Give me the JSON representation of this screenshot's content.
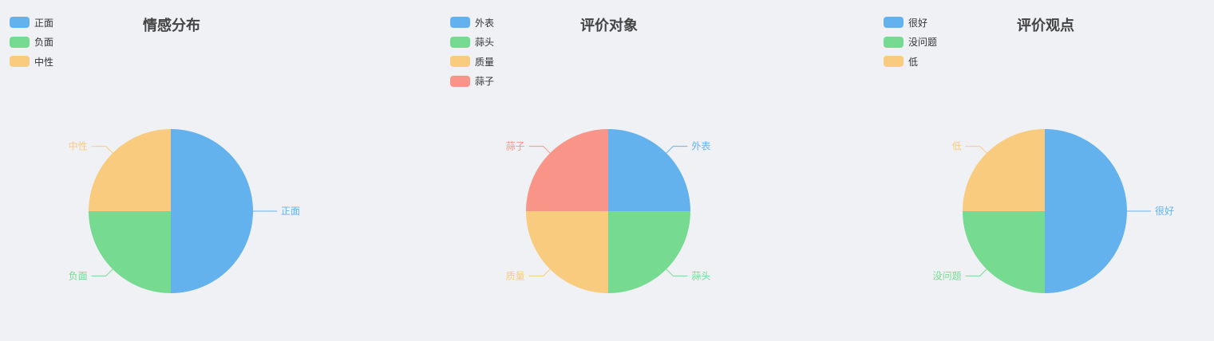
{
  "colors": [
    "#63b2ee",
    "#76da91",
    "#f8cb7f",
    "#f89588"
  ],
  "chart_data": [
    {
      "type": "pie",
      "title": "情感分布",
      "categories": [
        "正面",
        "负面",
        "中性"
      ],
      "values": [
        2,
        1,
        1
      ]
    },
    {
      "type": "pie",
      "title": "评价对象",
      "categories": [
        "外表",
        "蒜头",
        "质量",
        "蒜子"
      ],
      "values": [
        1,
        1,
        1,
        1
      ]
    },
    {
      "type": "pie",
      "title": "评价观点",
      "categories": [
        "很好",
        "没问题",
        "低"
      ],
      "values": [
        2,
        1,
        1
      ]
    }
  ]
}
